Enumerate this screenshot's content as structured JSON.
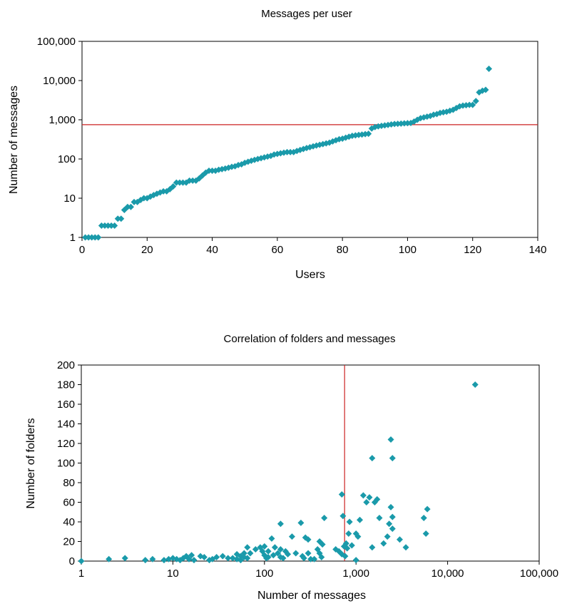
{
  "colors": {
    "marker": "#1a9aaa",
    "reference_line": "#cc2222",
    "axis": "#000000"
  },
  "chart_data": [
    {
      "type": "scatter",
      "title": "Messages per user",
      "xlabel": "Users",
      "ylabel": "Number of messages",
      "xlim": [
        0,
        140
      ],
      "ylim": [
        1,
        100000
      ],
      "y_scale": "log",
      "grid": false,
      "x_ticks": [
        0,
        20,
        40,
        60,
        80,
        100,
        120,
        140
      ],
      "x_tick_labels": [
        "0",
        "20",
        "40",
        "60",
        "80",
        "100",
        "120",
        "140"
      ],
      "y_ticks": [
        1,
        10,
        100,
        1000,
        10000,
        100000
      ],
      "y_tick_labels": [
        "1",
        "10",
        "100",
        "1,000",
        "10,000",
        "100,000"
      ],
      "reference_line": {
        "axis": "y",
        "value": 750
      },
      "marker": "diamond",
      "x": [
        1,
        2,
        3,
        4,
        5,
        6,
        7,
        8,
        9,
        10,
        11,
        12,
        13,
        14,
        15,
        16,
        17,
        18,
        19,
        20,
        21,
        22,
        23,
        24,
        25,
        26,
        27,
        28,
        29,
        30,
        31,
        32,
        33,
        34,
        35,
        36,
        37,
        38,
        39,
        40,
        41,
        42,
        43,
        44,
        45,
        46,
        47,
        48,
        49,
        50,
        51,
        52,
        53,
        54,
        55,
        56,
        57,
        58,
        59,
        60,
        61,
        62,
        63,
        64,
        65,
        66,
        67,
        68,
        69,
        70,
        71,
        72,
        73,
        74,
        75,
        76,
        77,
        78,
        79,
        80,
        81,
        82,
        83,
        84,
        85,
        86,
        87,
        88,
        89,
        90,
        91,
        92,
        93,
        94,
        95,
        96,
        97,
        98,
        99,
        100,
        101,
        102,
        103,
        104,
        105,
        106,
        107,
        108,
        109,
        110,
        111,
        112,
        113,
        114,
        115,
        116,
        117,
        118,
        119,
        120,
        121,
        122,
        123,
        124,
        125
      ],
      "y": [
        1,
        1,
        1,
        1,
        1,
        2,
        2,
        2,
        2,
        2,
        3,
        3,
        5,
        6,
        6,
        8,
        8,
        9,
        10,
        10,
        11,
        12,
        13,
        14,
        15,
        15,
        17,
        20,
        25,
        25,
        25,
        25,
        28,
        28,
        28,
        32,
        38,
        45,
        50,
        50,
        50,
        53,
        55,
        57,
        60,
        63,
        65,
        70,
        73,
        80,
        85,
        90,
        95,
        100,
        105,
        110,
        115,
        120,
        130,
        135,
        140,
        145,
        150,
        150,
        150,
        160,
        170,
        180,
        190,
        200,
        210,
        220,
        230,
        240,
        250,
        260,
        280,
        300,
        320,
        330,
        350,
        370,
        390,
        400,
        410,
        420,
        430,
        440,
        600,
        650,
        680,
        700,
        720,
        740,
        760,
        780,
        790,
        800,
        810,
        820,
        830,
        900,
        1000,
        1100,
        1150,
        1200,
        1250,
        1350,
        1400,
        1500,
        1550,
        1600,
        1700,
        1800,
        2000,
        2200,
        2300,
        2350,
        2400,
        2400,
        3000,
        5000,
        5500,
        5800,
        20000
      ]
    },
    {
      "type": "scatter",
      "title": "Correlation of folders and messages",
      "xlabel": "Number of messages",
      "ylabel": "Number of folders",
      "xlim": [
        1,
        100000
      ],
      "x_scale": "log",
      "ylim": [
        0,
        200
      ],
      "grid": false,
      "x_ticks": [
        1,
        10,
        100,
        1000,
        10000,
        100000
      ],
      "x_tick_labels": [
        "1",
        "10",
        "100",
        "1,000",
        "10,000",
        "100,000"
      ],
      "y_ticks": [
        0,
        20,
        40,
        60,
        80,
        100,
        120,
        140,
        160,
        180,
        200
      ],
      "y_tick_labels": [
        "0",
        "20",
        "40",
        "60",
        "80",
        "100",
        "120",
        "140",
        "160",
        "180",
        "200"
      ],
      "reference_line": {
        "axis": "x",
        "value": 750
      },
      "marker": "diamond",
      "x": [
        1,
        2,
        3,
        5,
        6,
        8,
        9,
        10,
        11,
        12,
        13,
        14,
        15,
        16,
        17,
        20,
        22,
        25,
        27,
        30,
        35,
        40,
        45,
        50,
        50,
        55,
        55,
        60,
        60,
        65,
        65,
        70,
        80,
        90,
        95,
        100,
        100,
        105,
        110,
        110,
        120,
        125,
        130,
        140,
        150,
        150,
        150,
        160,
        170,
        180,
        200,
        220,
        250,
        260,
        270,
        280,
        300,
        300,
        320,
        350,
        380,
        400,
        400,
        420,
        430,
        450,
        600,
        650,
        700,
        700,
        720,
        740,
        760,
        780,
        800,
        830,
        850,
        900,
        1000,
        1000,
        1050,
        1100,
        1200,
        1300,
        1400,
        1500,
        1500,
        1600,
        1700,
        1800,
        2000,
        2200,
        2300,
        2400,
        2400,
        2500,
        2500,
        2500,
        3000,
        3500,
        5500,
        5800,
        6000,
        20000
      ],
      "y": [
        0,
        2,
        3,
        1,
        2,
        1,
        2,
        3,
        2,
        1,
        3,
        5,
        2,
        6,
        1,
        5,
        4,
        1,
        2,
        4,
        5,
        3,
        3,
        2,
        7,
        1,
        5,
        8,
        4,
        3,
        14,
        8,
        12,
        14,
        10,
        15,
        6,
        3,
        10,
        4,
        23,
        6,
        14,
        8,
        12,
        38,
        4,
        3,
        10,
        7,
        25,
        8,
        39,
        5,
        3,
        24,
        22,
        8,
        2,
        2,
        12,
        20,
        8,
        4,
        17,
        44,
        12,
        10,
        68,
        7,
        46,
        15,
        5,
        18,
        13,
        28,
        40,
        16,
        1,
        28,
        25,
        42,
        67,
        60,
        65,
        105,
        14,
        60,
        63,
        44,
        18,
        25,
        38,
        55,
        124,
        45,
        105,
        33,
        22,
        14,
        44,
        28,
        53,
        180
      ]
    }
  ]
}
